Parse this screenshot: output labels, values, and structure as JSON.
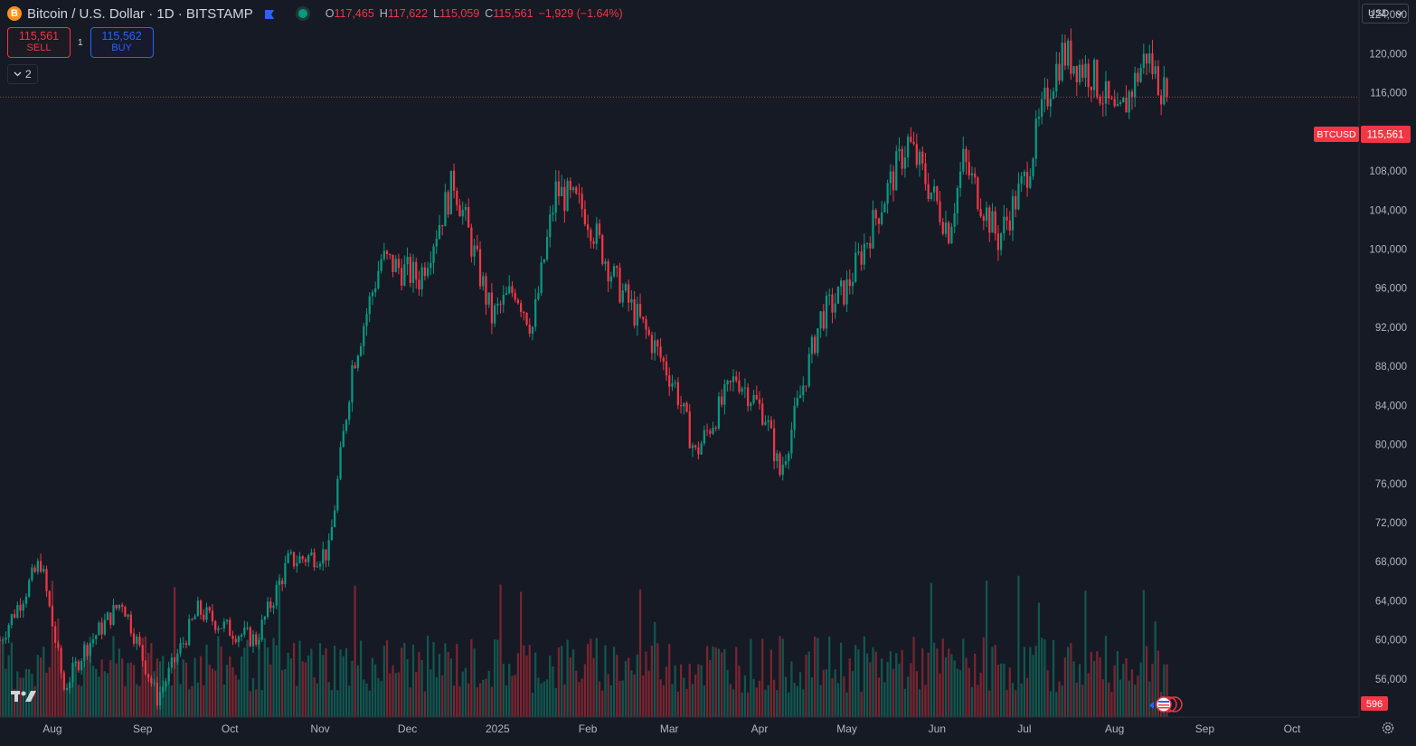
{
  "header": {
    "symbol_icon_glyph": "B",
    "title": "Bitcoin / U.S. Dollar · 1D · BITSTAMP",
    "ohlc": {
      "o_label": "O",
      "o_value": "117,465",
      "h_label": "H",
      "h_value": "117,622",
      "l_label": "L",
      "l_value": "115,059",
      "c_label": "C",
      "c_value": "115,561",
      "change": "−1,929 (−1.64%)"
    }
  },
  "trade": {
    "sell_price": "115,561",
    "sell_label": "SELL",
    "spread": "1",
    "buy_price": "115,562",
    "buy_label": "BUY"
  },
  "indicators_toggle": {
    "count": "2"
  },
  "currency": {
    "label": "USD"
  },
  "colors": {
    "background": "#161a25",
    "up": "#089981",
    "down": "#f23645",
    "up_volume": "#11574f",
    "down_volume": "#7a2530",
    "grid": "#1f2330",
    "axis_text": "#b2b5be"
  },
  "icons": [
    "bitcoin-icon",
    "flag-icon",
    "market-status-icon",
    "chevron-down-icon",
    "tradingview-logo-icon",
    "settings-gear-icon",
    "calendar-flag-icon"
  ],
  "chart_data": {
    "type": "candlestick",
    "title": "Bitcoin / U.S. Dollar · 1D · BITSTAMP",
    "y_ticks": [
      56000,
      60000,
      64000,
      68000,
      72000,
      76000,
      80000,
      84000,
      88000,
      92000,
      96000,
      100000,
      104000,
      108000,
      112000,
      116000,
      120000,
      124000
    ],
    "y_tick_labels": [
      "56,000",
      "60,000",
      "64,000",
      "68,000",
      "72,000",
      "76,000",
      "80,000",
      "84,000",
      "88,000",
      "92,000",
      "96,000",
      "100,000",
      "104,000",
      "108,000",
      "112,000",
      "116,000",
      "120,000",
      "124,000"
    ],
    "ylim": [
      52100,
      125500
    ],
    "x_tick_labels": [
      "Aug",
      "Sep",
      "Oct",
      "Nov",
      "Dec",
      "2025",
      "Feb",
      "Mar",
      "Apr",
      "May",
      "Jun",
      "Jul",
      "Aug",
      "Sep",
      "Oct"
    ],
    "x_tick_dates": [
      "2024-08-01",
      "2024-09-01",
      "2024-10-01",
      "2024-11-01",
      "2024-12-01",
      "2025-01-01",
      "2025-02-01",
      "2025-03-01",
      "2025-04-01",
      "2025-05-01",
      "2025-06-01",
      "2025-07-01",
      "2025-08-01",
      "2025-09-01",
      "2025-10-01"
    ],
    "xlim": [
      "2024-07-14",
      "2025-10-24"
    ],
    "weekly_path": [
      [
        "2024-07-14",
        60000
      ],
      [
        "2024-07-28",
        68000
      ],
      [
        "2024-08-05",
        55000
      ],
      [
        "2024-08-12",
        59000
      ],
      [
        "2024-08-25",
        64000
      ],
      [
        "2024-09-06",
        54000
      ],
      [
        "2024-09-20",
        63000
      ],
      [
        "2024-10-01",
        61000
      ],
      [
        "2024-10-10",
        60000
      ],
      [
        "2024-10-21",
        68000
      ],
      [
        "2024-11-04",
        69000
      ],
      [
        "2024-11-12",
        88000
      ],
      [
        "2024-11-22",
        99000
      ],
      [
        "2024-12-05",
        97000
      ],
      [
        "2024-12-17",
        107000
      ],
      [
        "2024-12-30",
        93000
      ],
      [
        "2025-01-07",
        96000
      ],
      [
        "2025-01-13",
        92000
      ],
      [
        "2025-01-21",
        106000
      ],
      [
        "2025-01-31",
        104000
      ],
      [
        "2025-02-10",
        97000
      ],
      [
        "2025-02-24",
        90000
      ],
      [
        "2025-03-03",
        86000
      ],
      [
        "2025-03-10",
        79000
      ],
      [
        "2025-03-24",
        87000
      ],
      [
        "2025-04-03",
        83000
      ],
      [
        "2025-04-08",
        77000
      ],
      [
        "2025-04-22",
        93000
      ],
      [
        "2025-05-01",
        96000
      ],
      [
        "2025-05-12",
        104000
      ],
      [
        "2025-05-22",
        111000
      ],
      [
        "2025-06-05",
        102000
      ],
      [
        "2025-06-10",
        109000
      ],
      [
        "2025-06-22",
        101000
      ],
      [
        "2025-07-01",
        107000
      ],
      [
        "2025-07-10",
        117000
      ],
      [
        "2025-07-14",
        120000
      ],
      [
        "2025-07-24",
        118000
      ],
      [
        "2025-08-02",
        113000
      ],
      [
        "2025-08-12",
        120000
      ],
      [
        "2025-08-14",
        118500
      ],
      [
        "2025-08-19",
        115561
      ]
    ],
    "last_candle": {
      "date": "2025-08-19",
      "open": 117465,
      "high": 117622,
      "low": 115059,
      "close": 115561
    },
    "volume_ylim": [
      0,
      880000
    ],
    "last_volume": "596",
    "price_line_label": "BTCUSD",
    "price_line_value": "115,561",
    "legend": "none",
    "grid": false
  }
}
